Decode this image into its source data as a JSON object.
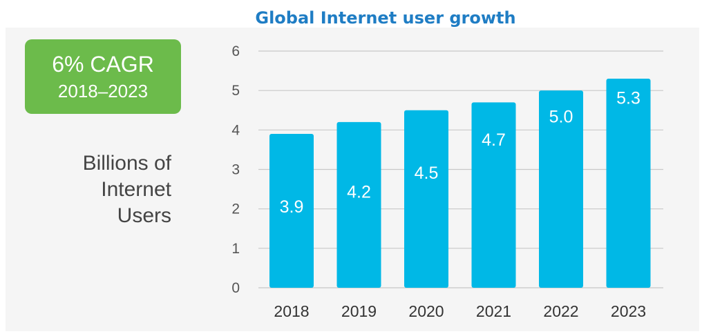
{
  "chart_data": {
    "type": "bar",
    "title": "Global Internet user growth",
    "ylabel": "Billions of\nInternet\nUsers",
    "categories": [
      "2018",
      "2019",
      "2020",
      "2021",
      "2022",
      "2023"
    ],
    "values": [
      3.9,
      4.2,
      4.5,
      4.7,
      5.0,
      5.3
    ],
    "value_labels": [
      "3.9",
      "4.2",
      "4.5",
      "4.7",
      "5.0",
      "5.3"
    ],
    "yticks": [
      0,
      1,
      2,
      3,
      4,
      5,
      6
    ],
    "ylim": [
      0,
      6
    ],
    "grid": true,
    "bar_color": "#00b8e6",
    "annotation": {
      "main": "6% CAGR",
      "sub": "2018–2023",
      "color": "#6cbb4b"
    }
  }
}
